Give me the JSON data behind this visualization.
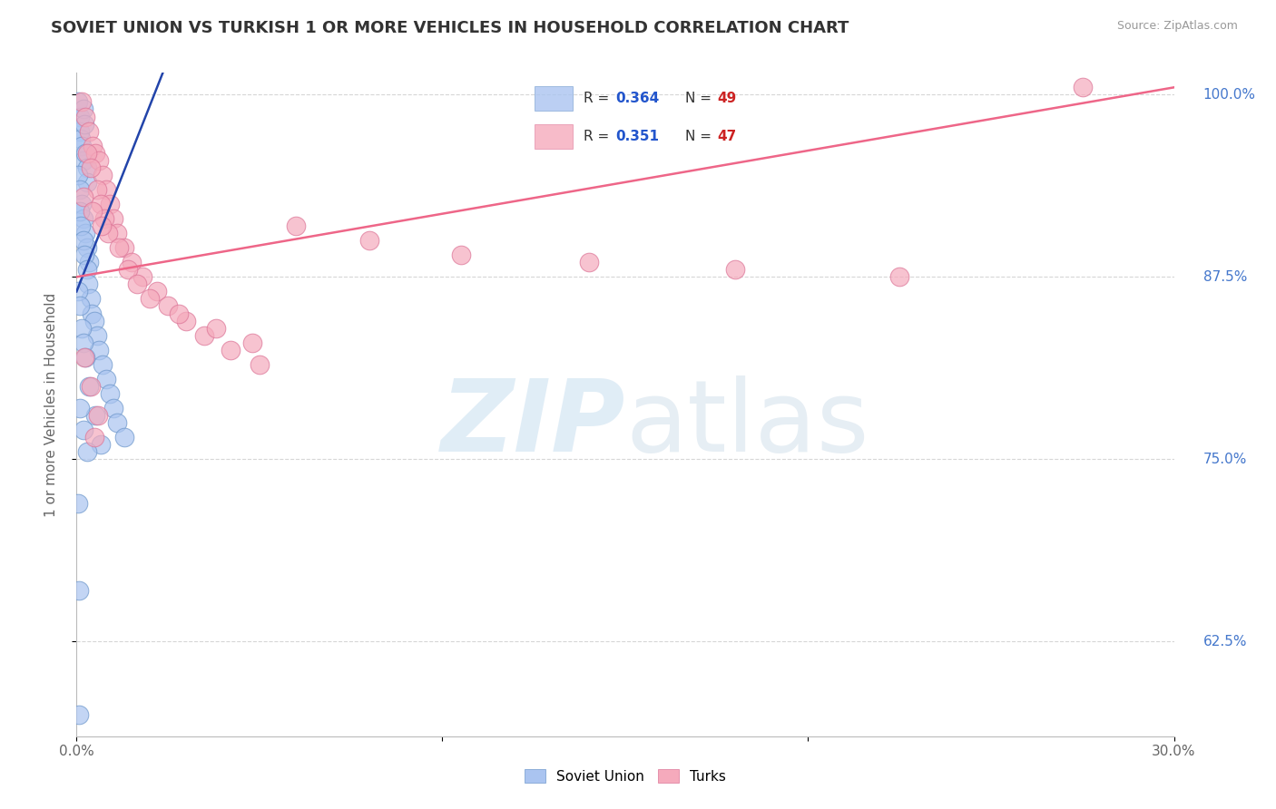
{
  "title": "SOVIET UNION VS TURKISH 1 OR MORE VEHICLES IN HOUSEHOLD CORRELATION CHART",
  "source": "Source: ZipAtlas.com",
  "ylabel": "1 or more Vehicles in Household",
  "xlim": [
    0.0,
    30.0
  ],
  "ylim": [
    56.0,
    101.5
  ],
  "xtick_positions": [
    0.0,
    10.0,
    20.0,
    30.0
  ],
  "xticklabels": [
    "0.0%",
    "",
    "",
    "30.0%"
  ],
  "ytick_positions": [
    62.5,
    75.0,
    87.5,
    100.0
  ],
  "yticklabels": [
    "62.5%",
    "75.0%",
    "87.5%",
    "100.0%"
  ],
  "soviet_R": "0.364",
  "soviet_N": "49",
  "turks_R": "0.351",
  "turks_N": "47",
  "soviet_color": "#aac4f0",
  "turks_color": "#f5aabc",
  "soviet_edge_color": "#7099cc",
  "turks_edge_color": "#dd7799",
  "soviet_line_color": "#2244aa",
  "turks_line_color": "#ee6688",
  "blue_line_x0": 0.0,
  "blue_line_y0": 86.5,
  "blue_line_x1": 2.2,
  "blue_line_y1": 100.5,
  "pink_line_x0": 0.0,
  "pink_line_y0": 87.5,
  "pink_line_x1": 30.0,
  "pink_line_y1": 100.5,
  "soviet_x": [
    0.05,
    0.08,
    0.1,
    0.12,
    0.15,
    0.18,
    0.2,
    0.22,
    0.25,
    0.28,
    0.3,
    0.05,
    0.1,
    0.15,
    0.2,
    0.25,
    0.3,
    0.35,
    0.08,
    0.12,
    0.18,
    0.22,
    0.28,
    0.32,
    0.38,
    0.42,
    0.48,
    0.55,
    0.6,
    0.7,
    0.8,
    0.9,
    1.0,
    1.1,
    1.3,
    0.05,
    0.1,
    0.15,
    0.2,
    0.25,
    0.35,
    0.5,
    0.65,
    0.08,
    0.18,
    0.28,
    0.04,
    0.07,
    0.06
  ],
  "soviet_y": [
    99.5,
    98.5,
    97.5,
    97.0,
    96.5,
    95.5,
    99.0,
    98.0,
    96.0,
    95.0,
    94.0,
    94.5,
    93.5,
    92.5,
    91.5,
    90.5,
    89.5,
    88.5,
    92.0,
    91.0,
    90.0,
    89.0,
    88.0,
    87.0,
    86.0,
    85.0,
    84.5,
    83.5,
    82.5,
    81.5,
    80.5,
    79.5,
    78.5,
    77.5,
    76.5,
    86.5,
    85.5,
    84.0,
    83.0,
    82.0,
    80.0,
    78.0,
    76.0,
    78.5,
    77.0,
    75.5,
    72.0,
    66.0,
    57.5
  ],
  "turks_x": [
    0.15,
    0.25,
    0.35,
    0.45,
    0.5,
    0.6,
    0.7,
    0.8,
    0.9,
    1.0,
    1.1,
    1.3,
    1.5,
    1.8,
    2.2,
    2.5,
    3.0,
    3.5,
    4.2,
    5.0,
    0.3,
    0.4,
    0.55,
    0.65,
    0.75,
    0.85,
    1.15,
    1.4,
    1.65,
    2.0,
    2.8,
    3.8,
    4.8,
    6.0,
    8.0,
    10.5,
    14.0,
    18.0,
    22.5,
    27.5,
    0.2,
    0.45,
    0.68,
    0.22,
    0.38,
    0.58,
    0.48
  ],
  "turks_y": [
    99.5,
    98.5,
    97.5,
    96.5,
    96.0,
    95.5,
    94.5,
    93.5,
    92.5,
    91.5,
    90.5,
    89.5,
    88.5,
    87.5,
    86.5,
    85.5,
    84.5,
    83.5,
    82.5,
    81.5,
    96.0,
    95.0,
    93.5,
    92.5,
    91.5,
    90.5,
    89.5,
    88.0,
    87.0,
    86.0,
    85.0,
    84.0,
    83.0,
    91.0,
    90.0,
    89.0,
    88.5,
    88.0,
    87.5,
    100.5,
    93.0,
    92.0,
    91.0,
    82.0,
    80.0,
    78.0,
    76.5
  ]
}
